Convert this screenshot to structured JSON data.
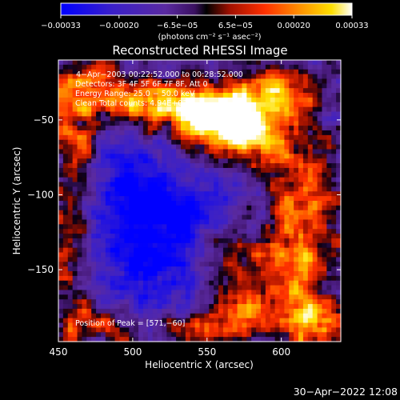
{
  "chart_data": {
    "type": "heatmap",
    "title": "Reconstructed RHESSI Image",
    "xlabel": "Heliocentric X (arcsec)",
    "ylabel": "Heliocentric Y (arcsec)",
    "xlim": [
      450,
      640
    ],
    "ylim": [
      -198,
      -10
    ],
    "x_ticks": [
      450,
      500,
      550,
      600
    ],
    "y_ticks": [
      -150,
      -100,
      -50
    ],
    "x_tick_labels": [
      "450",
      "500",
      "550",
      "600"
    ],
    "y_tick_labels": [
      "−150",
      "−100",
      "−50"
    ],
    "colorbar": {
      "range": [
        -0.00033,
        0.00033
      ],
      "tick_labels": [
        "−0.00033",
        "−0.00020",
        "−6.5e−05",
        "6.5e−05",
        "0.00020",
        "0.00033"
      ],
      "units": "(photons cm⁻² s⁻¹ asec⁻²)"
    },
    "annotations": [
      "4−Apr−2003 00:22:52.000 to 00:28:52.000",
      "Detectors: 3F 4F 5F 6F 7F 8F, Att 0",
      "Energy Range: 25.0 − 50.0 keV",
      "Clean     Total counts: 4.94E+03",
      "Position of Peak = [571,−60]"
    ],
    "peak": {
      "x": 571,
      "y": -60
    },
    "hot_regions": [
      {
        "x": 571,
        "y": -58,
        "sx": 22,
        "sy": 14,
        "amp": 1.0
      },
      {
        "x": 545,
        "y": -44,
        "sx": 26,
        "sy": 12,
        "amp": 0.75
      },
      {
        "x": 595,
        "y": -30,
        "sx": 22,
        "sy": 12,
        "amp": 0.6
      },
      {
        "x": 512,
        "y": -38,
        "sx": 30,
        "sy": 10,
        "amp": 0.55
      },
      {
        "x": 470,
        "y": -25,
        "sx": 18,
        "sy": 12,
        "amp": 0.55
      },
      {
        "x": 462,
        "y": -62,
        "sx": 12,
        "sy": 20,
        "amp": 0.5
      },
      {
        "x": 615,
        "y": -95,
        "sx": 18,
        "sy": 30,
        "amp": 0.55
      },
      {
        "x": 560,
        "y": -140,
        "sx": 14,
        "sy": 20,
        "amp": 0.5
      },
      {
        "x": 605,
        "y": -155,
        "sx": 18,
        "sy": 25,
        "amp": 0.55
      },
      {
        "x": 625,
        "y": -185,
        "sx": 16,
        "sy": 14,
        "amp": 0.6
      },
      {
        "x": 475,
        "y": -185,
        "sx": 18,
        "sy": 12,
        "amp": 0.55
      },
      {
        "x": 530,
        "y": -190,
        "sx": 25,
        "sy": 8,
        "amp": 0.45
      },
      {
        "x": 458,
        "y": -130,
        "sx": 10,
        "sy": 30,
        "amp": 0.5
      },
      {
        "x": 575,
        "y": -180,
        "sx": 18,
        "sy": 10,
        "amp": 0.5
      }
    ],
    "cold_regions": [
      {
        "x": 510,
        "y": -145,
        "sx": 28,
        "sy": 30,
        "amp": 0.7
      },
      {
        "x": 500,
        "y": -95,
        "sx": 25,
        "sy": 25,
        "amp": 0.55
      },
      {
        "x": 540,
        "y": -115,
        "sx": 20,
        "sy": 20,
        "amp": 0.5
      }
    ],
    "grid": false,
    "colors": {
      "background": "#000000",
      "colormap": [
        "#0000ff",
        "#3b20c8",
        "#5a2aa0",
        "#50207a",
        "#000000",
        "#a01000",
        "#ff3000",
        "#ff9000",
        "#ffe000",
        "#ffffff"
      ]
    }
  },
  "footer": {
    "timestamp": "30−Apr−2022 12:08"
  }
}
